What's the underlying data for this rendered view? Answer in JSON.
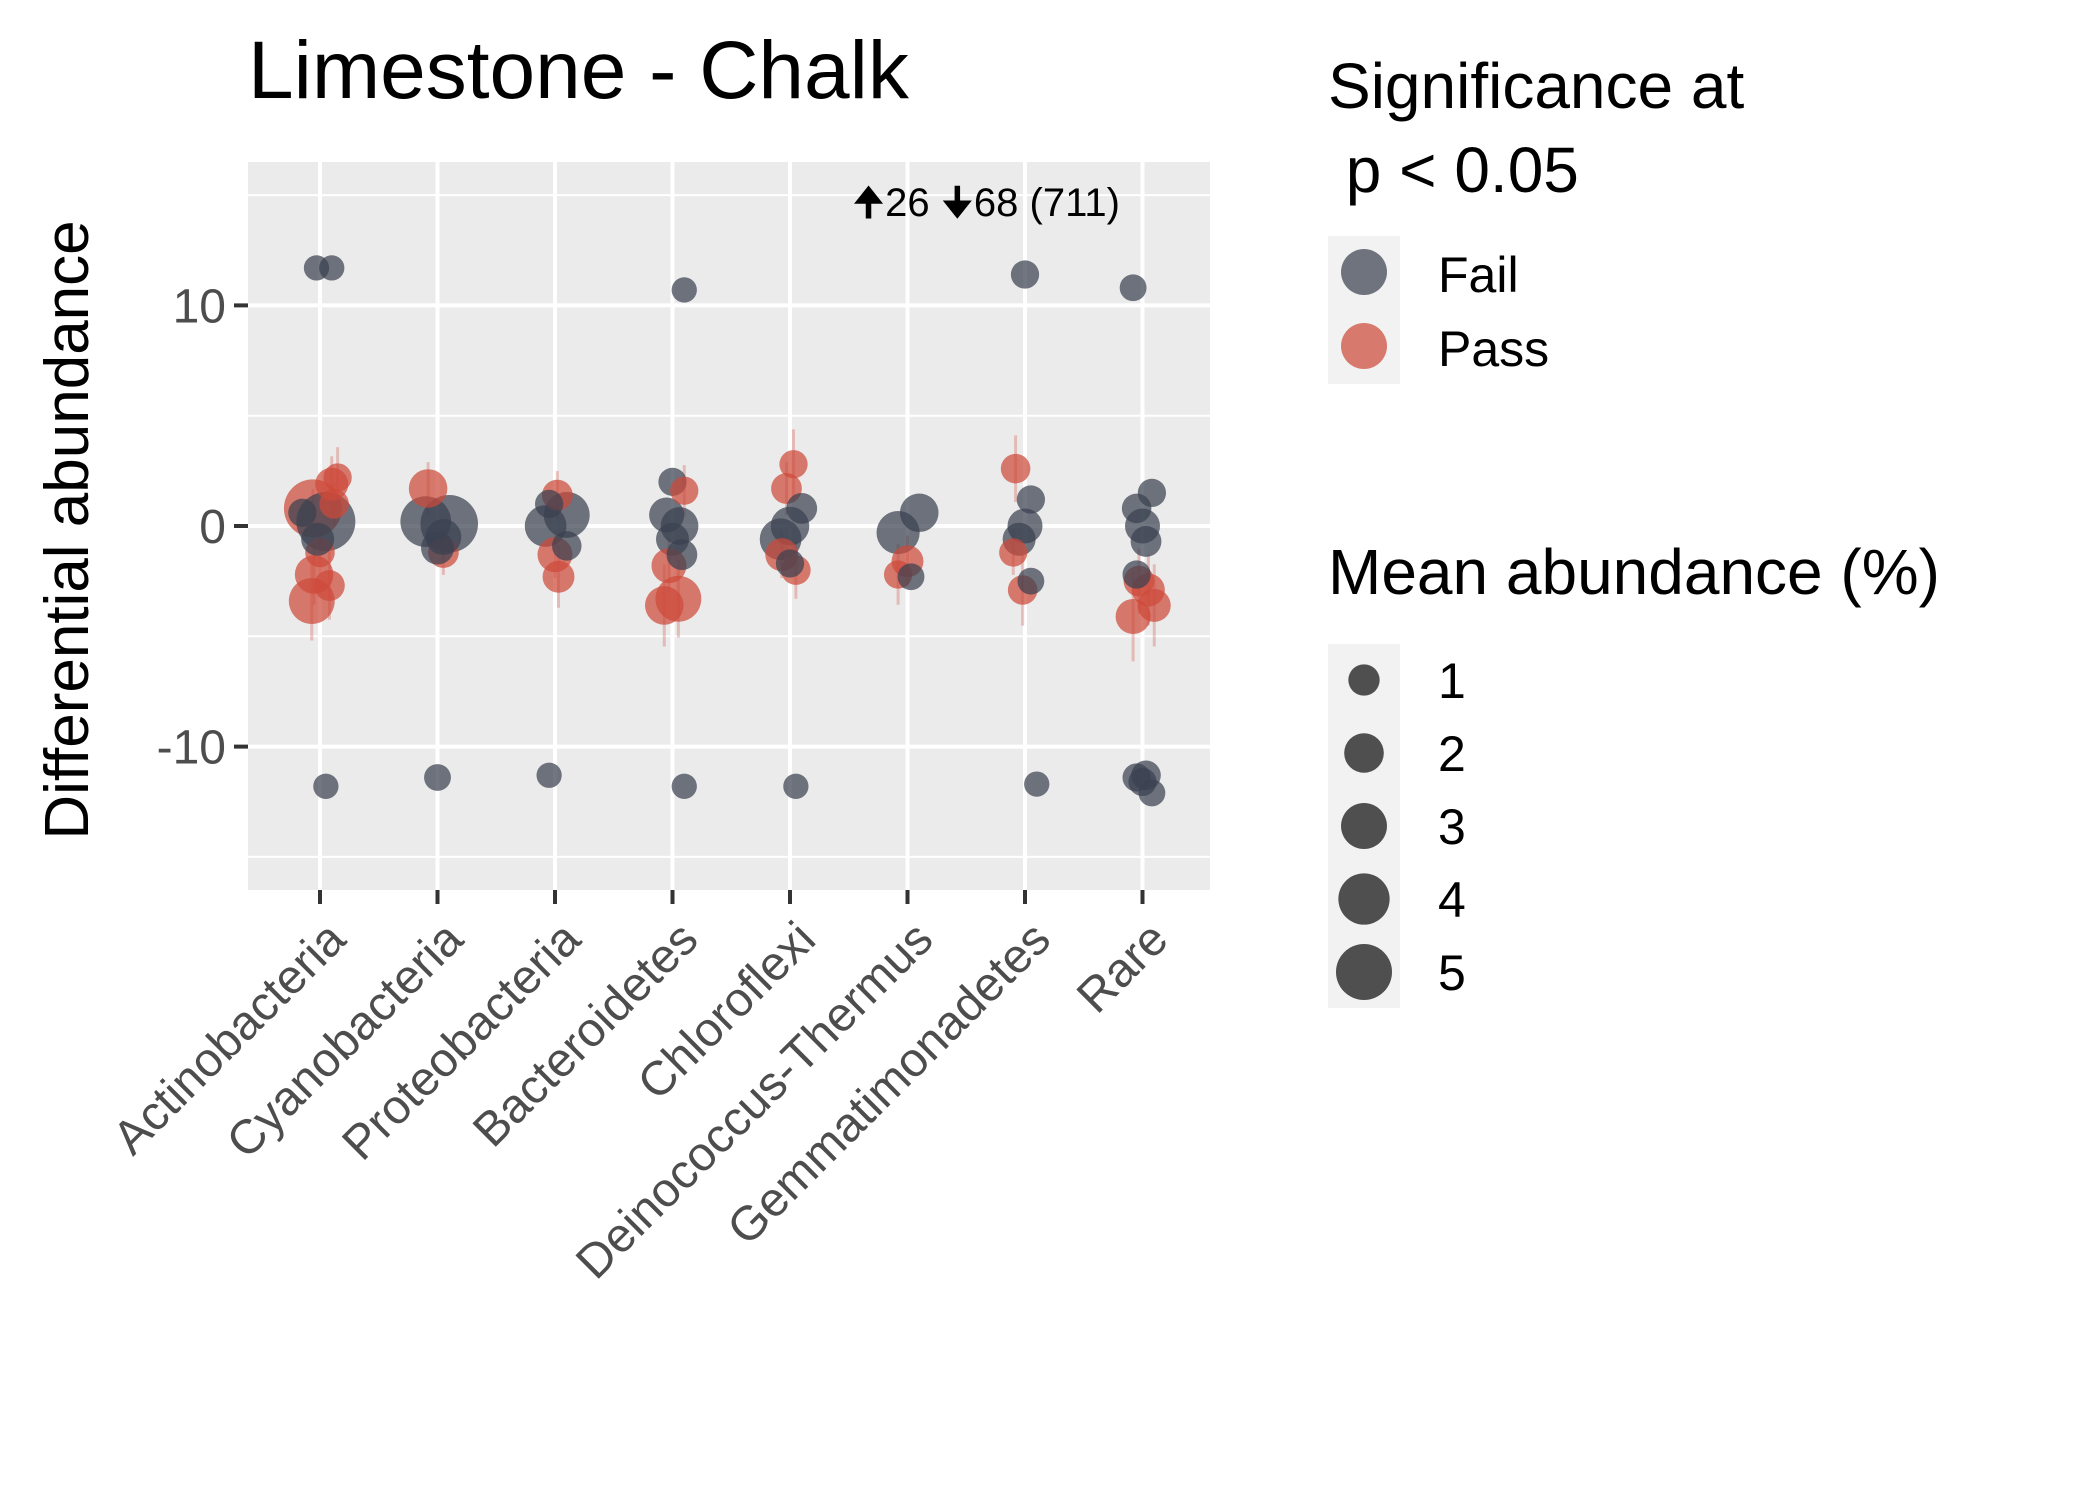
{
  "chart_data": {
    "type": "scatter",
    "title": "Limestone - Chalk",
    "xlabel": "",
    "ylabel": "Differential abundance",
    "ylim": [
      -16.5,
      16.5
    ],
    "yticks": [
      10,
      0,
      -10
    ],
    "ytick_labels": [
      "10",
      "0",
      "-10"
    ],
    "grid": true,
    "categories": [
      "Actinobacteria",
      "Cyanobacteria",
      "Proteobacteria",
      "Bacteroidetes",
      "Chloroflexi",
      "Deinococcus-Thermus",
      "Gemmatimonadetes",
      "Rare"
    ],
    "annotation": {
      "up_arrow": "🠉",
      "up_count": "26",
      "down_arrow": "🠋",
      "down_count": "68",
      "total": "(711)"
    },
    "colors": {
      "Fail": "#3a4150",
      "Pass": "#cd4a3a",
      "panel": "#ebebeb",
      "grid": "#ffffff"
    },
    "legend": {
      "position": "right",
      "significance_title_line1": "Significance at",
      "significance_title_line2": " p < 0.05",
      "significance_items": [
        "Fail",
        "Pass"
      ],
      "size_title": "Mean abundance (%)",
      "size_items": [
        1,
        2,
        3,
        4,
        5
      ]
    },
    "points": [
      {
        "cat": 0,
        "y": 11.7,
        "size": 0.4,
        "sig": "Fail",
        "jit": -0.03
      },
      {
        "cat": 0,
        "y": 11.7,
        "size": 0.4,
        "sig": "Fail",
        "jit": 0.1
      },
      {
        "cat": 0,
        "y": 0.8,
        "size": 4.8,
        "sig": "Pass",
        "jit": -0.06
      },
      {
        "cat": 0,
        "y": 0.2,
        "size": 5.0,
        "sig": "Fail",
        "jit": 0.05
      },
      {
        "cat": 0,
        "y": 1.9,
        "size": 1.0,
        "sig": "Pass",
        "jit": 0.1
      },
      {
        "cat": 0,
        "y": 2.2,
        "size": 0.6,
        "sig": "Pass",
        "jit": 0.15
      },
      {
        "cat": 0,
        "y": 1.0,
        "size": 0.7,
        "sig": "Pass",
        "jit": 0.12
      },
      {
        "cat": 0,
        "y": -1.2,
        "size": 0.7,
        "sig": "Pass",
        "jit": 0.0
      },
      {
        "cat": 0,
        "y": -2.2,
        "size": 1.6,
        "sig": "Pass",
        "jit": -0.05
      },
      {
        "cat": 0,
        "y": -2.7,
        "size": 0.8,
        "sig": "Pass",
        "jit": 0.08
      },
      {
        "cat": 0,
        "y": -3.4,
        "size": 2.6,
        "sig": "Pass",
        "jit": -0.07
      },
      {
        "cat": 0,
        "y": -0.6,
        "size": 1.0,
        "sig": "Fail",
        "jit": -0.02
      },
      {
        "cat": 0,
        "y": 0.6,
        "size": 0.6,
        "sig": "Fail",
        "jit": -0.15
      },
      {
        "cat": 0,
        "y": -11.8,
        "size": 0.4,
        "sig": "Fail",
        "jit": 0.05
      },
      {
        "cat": 1,
        "y": 0.2,
        "size": 3.4,
        "sig": "Fail",
        "jit": -0.1
      },
      {
        "cat": 1,
        "y": 0.1,
        "size": 4.7,
        "sig": "Fail",
        "jit": 0.1
      },
      {
        "cat": 1,
        "y": 1.7,
        "size": 1.6,
        "sig": "Pass",
        "jit": -0.08
      },
      {
        "cat": 1,
        "y": -1.2,
        "size": 0.8,
        "sig": "Pass",
        "jit": 0.05
      },
      {
        "cat": 1,
        "y": -1.0,
        "size": 1.0,
        "sig": "Fail",
        "jit": 0.0
      },
      {
        "cat": 1,
        "y": -0.5,
        "size": 1.3,
        "sig": "Fail",
        "jit": 0.05
      },
      {
        "cat": 1,
        "y": -11.4,
        "size": 0.5,
        "sig": "Fail",
        "jit": 0.0
      },
      {
        "cat": 2,
        "y": 0.5,
        "size": 2.6,
        "sig": "Fail",
        "jit": 0.1
      },
      {
        "cat": 2,
        "y": 0.0,
        "size": 2.0,
        "sig": "Fail",
        "jit": -0.08
      },
      {
        "cat": 2,
        "y": 1.4,
        "size": 0.8,
        "sig": "Pass",
        "jit": 0.02
      },
      {
        "cat": 2,
        "y": -1.3,
        "size": 1.2,
        "sig": "Pass",
        "jit": 0.0
      },
      {
        "cat": 2,
        "y": -2.3,
        "size": 0.9,
        "sig": "Pass",
        "jit": 0.03
      },
      {
        "cat": 2,
        "y": -0.9,
        "size": 0.7,
        "sig": "Fail",
        "jit": 0.1
      },
      {
        "cat": 2,
        "y": 1.0,
        "size": 0.6,
        "sig": "Fail",
        "jit": -0.05
      },
      {
        "cat": 2,
        "y": -11.3,
        "size": 0.4,
        "sig": "Fail",
        "jit": -0.05
      },
      {
        "cat": 3,
        "y": 10.7,
        "size": 0.4,
        "sig": "Fail",
        "jit": 0.1
      },
      {
        "cat": 3,
        "y": 0.5,
        "size": 1.2,
        "sig": "Fail",
        "jit": -0.05
      },
      {
        "cat": 3,
        "y": 0.0,
        "size": 1.5,
        "sig": "Fail",
        "jit": 0.06
      },
      {
        "cat": 3,
        "y": -0.6,
        "size": 1.0,
        "sig": "Fail",
        "jit": 0.0
      },
      {
        "cat": 3,
        "y": 2.0,
        "size": 0.6,
        "sig": "Fail",
        "jit": 0.0
      },
      {
        "cat": 3,
        "y": 1.6,
        "size": 0.6,
        "sig": "Pass",
        "jit": 0.1
      },
      {
        "cat": 3,
        "y": -1.8,
        "size": 1.2,
        "sig": "Pass",
        "jit": -0.03
      },
      {
        "cat": 3,
        "y": -3.3,
        "size": 2.6,
        "sig": "Pass",
        "jit": 0.05
      },
      {
        "cat": 3,
        "y": -3.6,
        "size": 1.6,
        "sig": "Pass",
        "jit": -0.07
      },
      {
        "cat": 3,
        "y": -1.3,
        "size": 0.8,
        "sig": "Fail",
        "jit": 0.08
      },
      {
        "cat": 3,
        "y": -11.8,
        "size": 0.4,
        "sig": "Fail",
        "jit": 0.1
      },
      {
        "cat": 4,
        "y": 2.8,
        "size": 0.6,
        "sig": "Pass",
        "jit": 0.03
      },
      {
        "cat": 4,
        "y": 1.7,
        "size": 0.8,
        "sig": "Pass",
        "jit": -0.03
      },
      {
        "cat": 4,
        "y": 0.0,
        "size": 1.6,
        "sig": "Fail",
        "jit": 0.0
      },
      {
        "cat": 4,
        "y": -0.6,
        "size": 2.0,
        "sig": "Fail",
        "jit": -0.08
      },
      {
        "cat": 4,
        "y": 0.8,
        "size": 0.8,
        "sig": "Fail",
        "jit": 0.1
      },
      {
        "cat": 4,
        "y": -1.3,
        "size": 1.0,
        "sig": "Pass",
        "jit": -0.07
      },
      {
        "cat": 4,
        "y": -2.0,
        "size": 0.7,
        "sig": "Pass",
        "jit": 0.05
      },
      {
        "cat": 4,
        "y": -1.7,
        "size": 0.6,
        "sig": "Fail",
        "jit": 0.0
      },
      {
        "cat": 4,
        "y": -11.8,
        "size": 0.4,
        "sig": "Fail",
        "jit": 0.05
      },
      {
        "cat": 5,
        "y": 0.6,
        "size": 1.6,
        "sig": "Fail",
        "jit": 0.1
      },
      {
        "cat": 5,
        "y": -0.3,
        "size": 2.2,
        "sig": "Fail",
        "jit": -0.08
      },
      {
        "cat": 5,
        "y": -1.6,
        "size": 0.9,
        "sig": "Pass",
        "jit": 0.0
      },
      {
        "cat": 5,
        "y": -2.2,
        "size": 0.6,
        "sig": "Pass",
        "jit": -0.08
      },
      {
        "cat": 5,
        "y": -2.3,
        "size": 0.5,
        "sig": "Fail",
        "jit": 0.03
      },
      {
        "cat": 6,
        "y": 11.4,
        "size": 0.6,
        "sig": "Fail",
        "jit": 0.0
      },
      {
        "cat": 6,
        "y": 2.6,
        "size": 0.7,
        "sig": "Pass",
        "jit": -0.08
      },
      {
        "cat": 6,
        "y": 0.0,
        "size": 1.2,
        "sig": "Fail",
        "jit": 0.0
      },
      {
        "cat": 6,
        "y": -0.6,
        "size": 1.0,
        "sig": "Fail",
        "jit": -0.05
      },
      {
        "cat": 6,
        "y": 1.2,
        "size": 0.6,
        "sig": "Fail",
        "jit": 0.05
      },
      {
        "cat": 6,
        "y": -1.2,
        "size": 0.6,
        "sig": "Pass",
        "jit": -0.1
      },
      {
        "cat": 6,
        "y": -2.9,
        "size": 0.7,
        "sig": "Pass",
        "jit": -0.02
      },
      {
        "cat": 6,
        "y": -2.5,
        "size": 0.5,
        "sig": "Fail",
        "jit": 0.05
      },
      {
        "cat": 6,
        "y": -11.7,
        "size": 0.4,
        "sig": "Fail",
        "jit": 0.1
      },
      {
        "cat": 7,
        "y": 10.8,
        "size": 0.5,
        "sig": "Fail",
        "jit": -0.08
      },
      {
        "cat": 7,
        "y": 0.0,
        "size": 1.2,
        "sig": "Fail",
        "jit": 0.0
      },
      {
        "cat": 7,
        "y": 0.8,
        "size": 0.7,
        "sig": "Fail",
        "jit": -0.05
      },
      {
        "cat": 7,
        "y": 1.5,
        "size": 0.6,
        "sig": "Fail",
        "jit": 0.08
      },
      {
        "cat": 7,
        "y": -0.7,
        "size": 0.8,
        "sig": "Fail",
        "jit": 0.03
      },
      {
        "cat": 7,
        "y": -2.5,
        "size": 0.8,
        "sig": "Pass",
        "jit": -0.03
      },
      {
        "cat": 7,
        "y": -2.9,
        "size": 1.0,
        "sig": "Pass",
        "jit": 0.05
      },
      {
        "cat": 7,
        "y": -3.6,
        "size": 1.0,
        "sig": "Pass",
        "jit": 0.1
      },
      {
        "cat": 7,
        "y": -4.1,
        "size": 1.2,
        "sig": "Pass",
        "jit": -0.08
      },
      {
        "cat": 7,
        "y": -2.2,
        "size": 0.6,
        "sig": "Fail",
        "jit": -0.05
      },
      {
        "cat": 7,
        "y": -11.4,
        "size": 0.6,
        "sig": "Fail",
        "jit": -0.05
      },
      {
        "cat": 7,
        "y": -11.3,
        "size": 0.7,
        "sig": "Fail",
        "jit": 0.03
      },
      {
        "cat": 7,
        "y": -11.6,
        "size": 0.6,
        "sig": "Fail",
        "jit": 0.0
      },
      {
        "cat": 7,
        "y": -12.1,
        "size": 0.5,
        "sig": "Fail",
        "jit": 0.08
      }
    ]
  }
}
